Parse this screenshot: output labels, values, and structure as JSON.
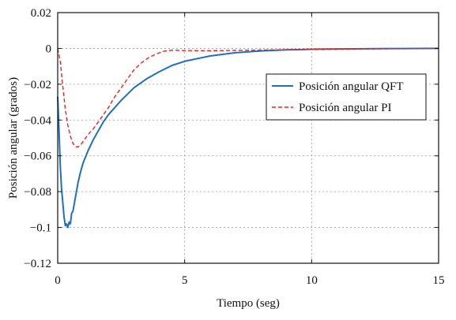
{
  "chart_data": {
    "type": "line",
    "title": "",
    "xlabel": "Tiempo (seg)",
    "ylabel": "Posición angular (grados)",
    "xlim": [
      0,
      15
    ],
    "ylim": [
      -0.12,
      0.02
    ],
    "xticks": [
      0,
      5,
      10,
      15
    ],
    "xtick_labels": [
      "0",
      "5",
      "10",
      "15"
    ],
    "yticks": [
      0.02,
      0,
      -0.02,
      -0.04,
      -0.06,
      -0.08,
      -0.1,
      -0.12
    ],
    "ytick_labels": [
      "0.02",
      "0",
      "−0.02",
      "−0.04",
      "−0.06",
      "−0.08",
      "−0.1",
      "−0.12"
    ],
    "grid": true,
    "legend": "center-right",
    "series": [
      {
        "name": "Posición angular QFT",
        "color": "#1f6fc0",
        "style": "solid",
        "x": [
          0,
          0.05,
          0.1,
          0.15,
          0.2,
          0.25,
          0.3,
          0.35,
          0.4,
          0.45,
          0.5,
          0.55,
          0.6,
          0.7,
          0.8,
          0.9,
          1.0,
          1.2,
          1.4,
          1.6,
          1.8,
          2.0,
          2.5,
          3.0,
          3.5,
          4.0,
          4.5,
          5.0,
          6.0,
          7.0,
          8.0,
          9.0,
          10.0,
          11.0,
          12.0,
          13.0,
          14.0,
          15.0
        ],
        "y": [
          -0.027,
          -0.045,
          -0.065,
          -0.078,
          -0.086,
          -0.094,
          -0.099,
          -0.098,
          -0.1,
          -0.097,
          -0.098,
          -0.092,
          -0.091,
          -0.083,
          -0.075,
          -0.069,
          -0.064,
          -0.057,
          -0.051,
          -0.046,
          -0.041,
          -0.037,
          -0.029,
          -0.022,
          -0.017,
          -0.013,
          -0.0095,
          -0.0072,
          -0.0042,
          -0.0024,
          -0.0014,
          -0.0008,
          -0.0005,
          -0.0003,
          -0.0002,
          -0.0001,
          -5e-05,
          0
        ]
      },
      {
        "name": "Posición angular PI",
        "color": "#e8231f",
        "style": "dashed",
        "x": [
          0,
          0.1,
          0.2,
          0.3,
          0.4,
          0.5,
          0.6,
          0.7,
          0.8,
          0.9,
          1.0,
          1.2,
          1.4,
          1.6,
          1.8,
          2.0,
          2.2,
          2.5,
          2.8,
          3.0,
          3.3,
          3.6,
          3.9,
          4.2,
          4.5,
          5.0,
          6.0,
          7.0,
          8.0,
          10.0,
          12.0,
          15.0
        ],
        "y": [
          0,
          -0.007,
          -0.021,
          -0.034,
          -0.043,
          -0.049,
          -0.053,
          -0.055,
          -0.055,
          -0.054,
          -0.052,
          -0.048,
          -0.045,
          -0.041,
          -0.037,
          -0.033,
          -0.028,
          -0.022,
          -0.016,
          -0.012,
          -0.008,
          -0.005,
          -0.003,
          -0.0015,
          -0.001,
          -0.0012,
          -0.0013,
          -0.0011,
          -0.0009,
          -0.0006,
          -0.0003,
          0
        ]
      }
    ]
  }
}
